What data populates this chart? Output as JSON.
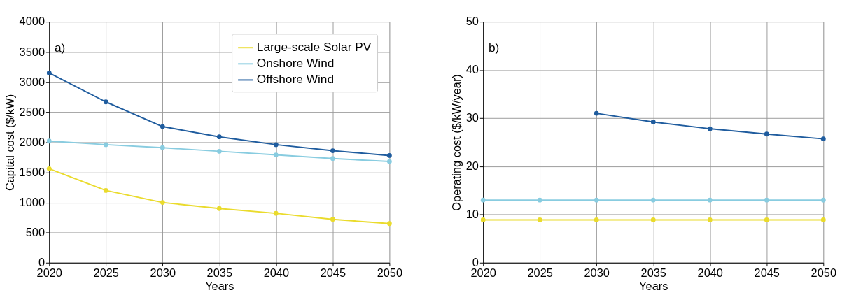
{
  "chart_data": [
    {
      "type": "line",
      "xlabel": "Years",
      "ylabel": "Capital cost ($/kW)",
      "annotations": [
        "a)"
      ],
      "x": [
        2020,
        2025,
        2030,
        2035,
        2040,
        2045,
        2050
      ],
      "series": [
        {
          "name": "Large-scale Solar PV",
          "color": "#eadb2c",
          "values": [
            1560,
            1200,
            1000,
            900,
            820,
            720,
            650
          ]
        },
        {
          "name": "Onshore Wind",
          "color": "#88cce0",
          "values": [
            2020,
            1960,
            1910,
            1850,
            1790,
            1730,
            1680
          ]
        },
        {
          "name": "Offshore Wind",
          "color": "#1f5c9e",
          "values": [
            3150,
            2670,
            2260,
            2090,
            1960,
            1860,
            1780
          ]
        }
      ],
      "xlim": [
        2020,
        2050
      ],
      "xticks": [
        2020,
        2025,
        2030,
        2035,
        2040,
        2045,
        2050
      ],
      "ylim": [
        0,
        4000
      ],
      "yticks": [
        0,
        500,
        1000,
        1500,
        2000,
        2500,
        3000,
        3500,
        4000
      ],
      "grid": true,
      "legend": "top right",
      "marker": "circle",
      "line_style": "solid"
    },
    {
      "type": "line",
      "xlabel": "Years",
      "ylabel": "Operating cost ($/kW/year)",
      "annotations": [
        "b)"
      ],
      "x": [
        2020,
        2025,
        2030,
        2035,
        2040,
        2045,
        2050
      ],
      "series": [
        {
          "color": "#eadb2c",
          "values": [
            8.9,
            8.9,
            8.9,
            8.9,
            8.9,
            8.9,
            8.9
          ]
        },
        {
          "color": "#88cce0",
          "values": [
            13,
            13,
            13,
            13,
            13,
            13,
            13
          ]
        },
        {
          "color": "#1f5c9e",
          "values": [
            null,
            null,
            31,
            29.2,
            27.8,
            26.7,
            25.7
          ]
        }
      ],
      "xlim": [
        2020,
        2050
      ],
      "xticks": [
        2020,
        2025,
        2030,
        2035,
        2040,
        2045,
        2050
      ],
      "ylim": [
        0,
        50
      ],
      "yticks": [
        0,
        10,
        20,
        30,
        40,
        50
      ],
      "grid": true,
      "legend": false,
      "marker": "circle",
      "line_style": "solid"
    }
  ]
}
